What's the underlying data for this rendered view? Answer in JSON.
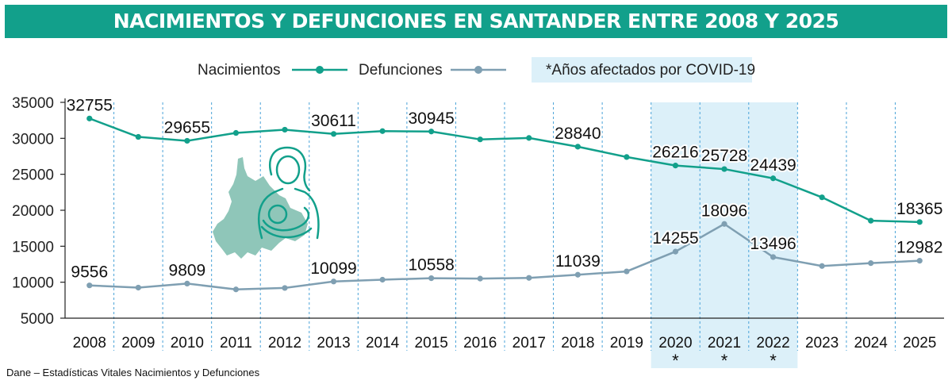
{
  "title": "NACIMIENTOS Y DEFUNCIONES EN SANTANDER ENTRE 2008 Y 2025",
  "source": "Dane – Estadísticas Vitales Nacimientos y Defunciones",
  "covid_note": "*Años afectados por COVID-19",
  "covid_marker": "*",
  "colors": {
    "title_bg": "#12a08b",
    "nacimientos": "#12a08b",
    "defunciones": "#7f9fb2",
    "covid_band": "#dcf0f9",
    "icon": "#12a08b",
    "map": "#8fc6b9"
  },
  "chart_data": {
    "type": "line",
    "title": "NACIMIENTOS Y DEFUNCIONES EN SANTANDER ENTRE 2008 Y 2025",
    "xlabel": "",
    "ylabel": "",
    "categories": [
      "2008",
      "2009",
      "2010",
      "2011",
      "2012",
      "2013",
      "2014",
      "2015",
      "2016",
      "2017",
      "2018",
      "2019",
      "2020",
      "2021",
      "2022",
      "2023",
      "2024",
      "2025"
    ],
    "ylim": [
      5000,
      35000
    ],
    "yticks": [
      35000,
      30000,
      25000,
      20000,
      15000,
      10000,
      5000
    ],
    "legend_position": "top",
    "highlight": {
      "categories": [
        "2020",
        "2021",
        "2022"
      ],
      "note": "*Años afectados por COVID-19"
    },
    "series": [
      {
        "name": "Nacimientos",
        "values": [
          32755,
          30200,
          29655,
          30750,
          31200,
          30611,
          31000,
          30945,
          29850,
          30050,
          28840,
          27400,
          26216,
          25728,
          24439,
          21800,
          18550,
          18365
        ],
        "labels": [
          "32755",
          "",
          "29655",
          "",
          "",
          "30611",
          "",
          "30945",
          "",
          "",
          "28840",
          "",
          "26216",
          "25728",
          "24439",
          "",
          "",
          "18365"
        ]
      },
      {
        "name": "Defunciones",
        "values": [
          9556,
          9250,
          9809,
          9000,
          9200,
          10099,
          10350,
          10558,
          10500,
          10600,
          11039,
          11500,
          14255,
          18096,
          13496,
          12250,
          12650,
          12982
        ],
        "labels": [
          "9556",
          "",
          "9809",
          "",
          "",
          "10099",
          "",
          "10558",
          "",
          "",
          "11039",
          "",
          "14255",
          "18096",
          "13496",
          "",
          "",
          "12982"
        ]
      }
    ]
  }
}
